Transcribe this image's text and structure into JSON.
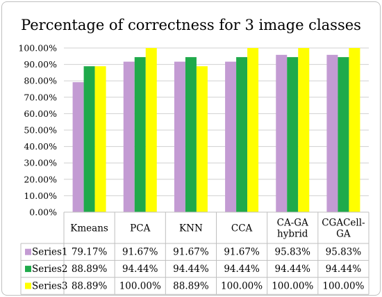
{
  "chart_data": {
    "type": "bar",
    "title": "Percentage of correctness for 3 image classes",
    "categories": [
      "Kmeans",
      "PCA",
      "KNN",
      "CCA",
      "CA-GA hybrid",
      "CGACell-GA"
    ],
    "category_lines": [
      [
        "Kmeans"
      ],
      [
        "PCA"
      ],
      [
        "KNN"
      ],
      [
        "CCA"
      ],
      [
        "CA-GA",
        "hybrid"
      ],
      [
        "CGACell-",
        "GA"
      ]
    ],
    "ylim": [
      0,
      100
    ],
    "y_ticks": [
      "0.00%",
      "10.00%",
      "20.00%",
      "30.00%",
      "40.00%",
      "50.00%",
      "60.00%",
      "70.00%",
      "80.00%",
      "90.00%",
      "100.00%"
    ],
    "grid": true,
    "legend": "data-table",
    "series": [
      {
        "name": "Series1",
        "color": "#c39bd3",
        "values": [
          79.17,
          91.67,
          91.67,
          91.67,
          95.83,
          95.83
        ],
        "labels": [
          "79.17%",
          "91.67%",
          "91.67%",
          "91.67%",
          "95.83%",
          "95.83%"
        ]
      },
      {
        "name": "Series2",
        "color": "#1faa4b",
        "values": [
          88.89,
          94.44,
          94.44,
          94.44,
          94.44,
          94.44
        ],
        "labels": [
          "88.89%",
          "94.44%",
          "94.44%",
          "94.44%",
          "94.44%",
          "94.44%"
        ]
      },
      {
        "name": "Series3",
        "color": "#ffff00",
        "values": [
          88.89,
          100,
          88.89,
          100,
          100,
          100
        ],
        "labels": [
          "88.89%",
          "100.00%",
          "88.89%",
          "100.00%",
          "100.00%",
          "100.00%"
        ]
      }
    ]
  }
}
